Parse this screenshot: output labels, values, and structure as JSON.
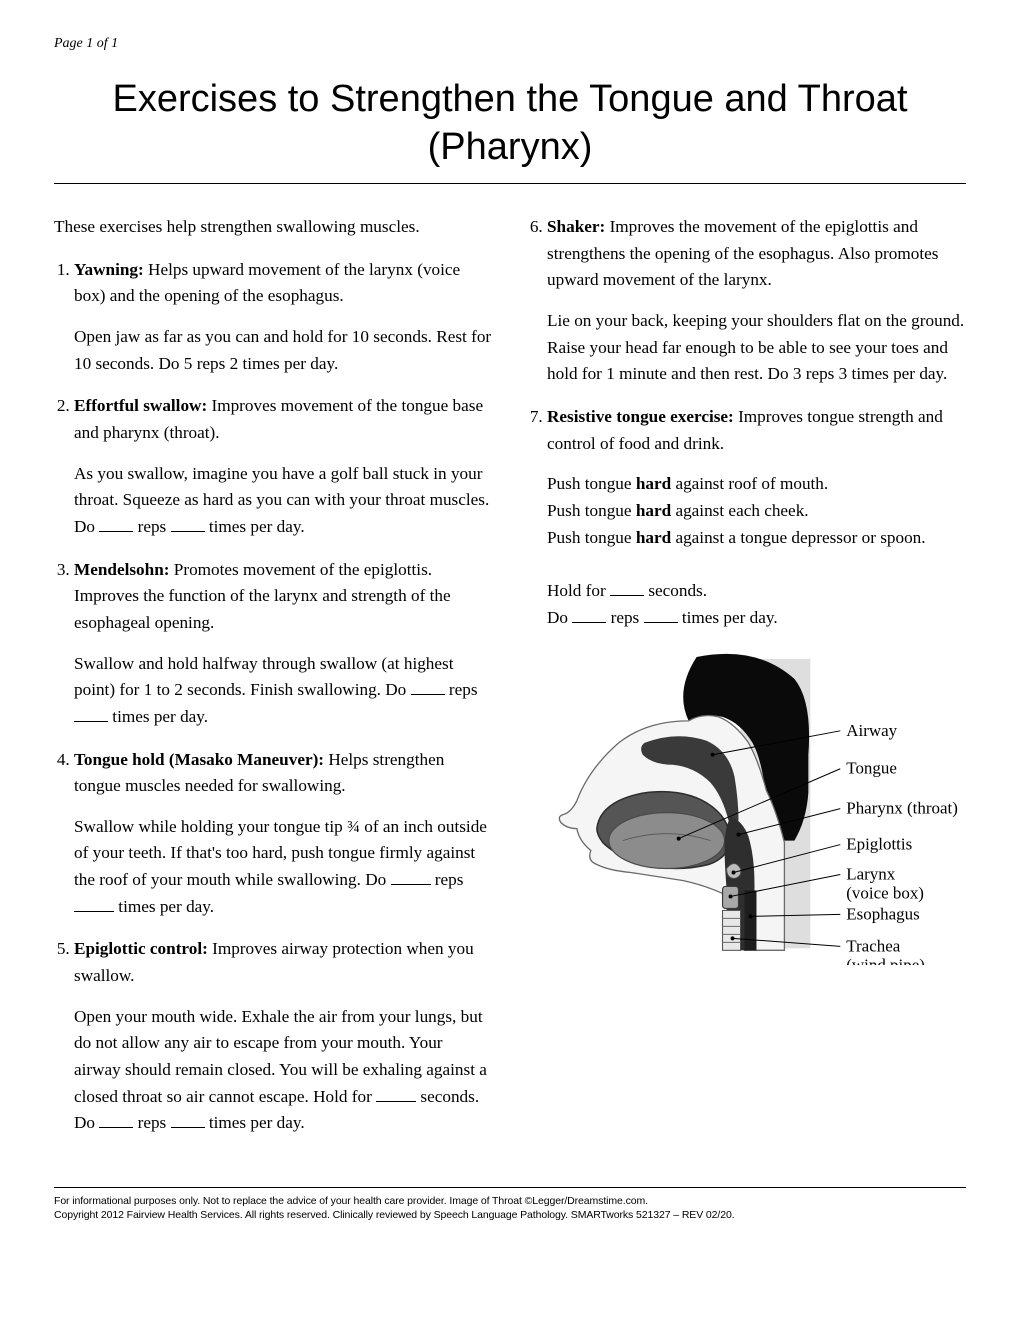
{
  "page_number": "Page 1 of 1",
  "title_line1": "Exercises to Strengthen the Tongue and Throat",
  "title_line2": "(Pharynx)",
  "intro": "These exercises help strengthen swallowing muscles.",
  "left_list_start": 1,
  "right_list_start": 6,
  "exercises_left": [
    {
      "name": "Yawning:",
      "desc": " Helps upward movement of the larynx (voice box) and the opening of the esophagus.",
      "instr_html": "Open jaw as far as you can and hold for 10 seconds. Rest for 10 seconds. Do 5 reps 2 times per day."
    },
    {
      "name": "Effortful swallow:",
      "desc": " Improves movement of the tongue base and pharynx (throat).",
      "instr_html": "As you swallow, imagine you have a golf ball stuck in your throat. Squeeze as hard as you can with your throat muscles. Do <span class=\"blank\"></span> reps <span class=\"blank\"></span> times per day."
    },
    {
      "name": "Mendelsohn:",
      "desc": " Promotes movement of the epiglottis. Improves the function of the larynx and strength of the esophageal opening.",
      "instr_html": "Swallow and hold halfway through swallow (at highest point) for 1 to 2 seconds. Finish swallowing. Do <span class=\"blank\"></span> reps <span class=\"blank\"></span> times per day."
    },
    {
      "name": "Tongue hold (Masako Maneuver):",
      "desc": " Helps strengthen tongue muscles needed for swallowing.",
      "instr_html": "Swallow while holding your tongue tip ¾ of an inch outside of your teeth. If that's too hard, push tongue firmly against the roof of your mouth while swallowing. Do <span class=\"blank\" style=\"min-width:40px\"></span> reps <span class=\"blank\" style=\"min-width:40px\"></span> times per day."
    },
    {
      "name": "Epiglottic control:",
      "desc": " Improves airway protection when you swallow.",
      "instr_html": "Open your mouth wide. Exhale the air from your lungs, but do not allow any air to escape from your mouth. Your airway should remain closed. You will be exhaling against a closed throat so air cannot escape. Hold for <span class=\"blank\" style=\"min-width:40px\"></span> seconds. Do <span class=\"blank\"></span> reps <span class=\"blank\"></span> times per day."
    }
  ],
  "exercises_right": [
    {
      "name": "Shaker:",
      "desc": " Improves the movement of the epiglottis and strengthens the opening of the esophagus. Also promotes upward movement of the larynx.",
      "instr_html": "Lie on your back, keeping your shoulders flat on the ground. Raise your head far enough to be able to see your toes and hold for 1 minute and then rest. Do 3 reps 3 times per day."
    },
    {
      "name": "Resistive tongue exercise:",
      "desc": " Improves tongue strength and control of food and drink.",
      "instr_html": "Push tongue <b>hard</b> against roof of mouth.<br>Push tongue <b>hard</b> against each cheek.<br>Push tongue <b>hard</b> against a tongue depressor or spoon.<br><br>Hold for <span class=\"blank\"></span> seconds.<br>Do <span class=\"blank\"></span> reps <span class=\"blank\"></span> times per day."
    }
  ],
  "diagram": {
    "labels": [
      "Airway",
      "Tongue",
      "Pharynx (throat)",
      "Epiglottis",
      "Larynx (voice box)",
      "Esophagus",
      "Trachea (wind pipe)"
    ],
    "label_fontsize": 17,
    "label_font": "Georgia, serif",
    "line_color": "#000000",
    "background": "#ffffff",
    "panel_color": "#dedede",
    "head_fill": "#0a0a0a",
    "skin_fill": "#f5f5f5",
    "skin_stroke": "#6a6a6a",
    "mouth_fill": "#555555",
    "tongue_fill": "#888888",
    "throat_fill": "#2e2e2e",
    "trachea_fill": "#e8e8e8"
  },
  "footnote_line1": "For informational purposes only. Not to replace the advice of your health care provider. Image of Throat ©Legger/Dreamstime.com.",
  "footnote_line2": "Copyright 2012 Fairview Health Services. All rights reserved. Clinically reviewed by Speech Language Pathology. SMARTworks 521327 – REV 02/20."
}
